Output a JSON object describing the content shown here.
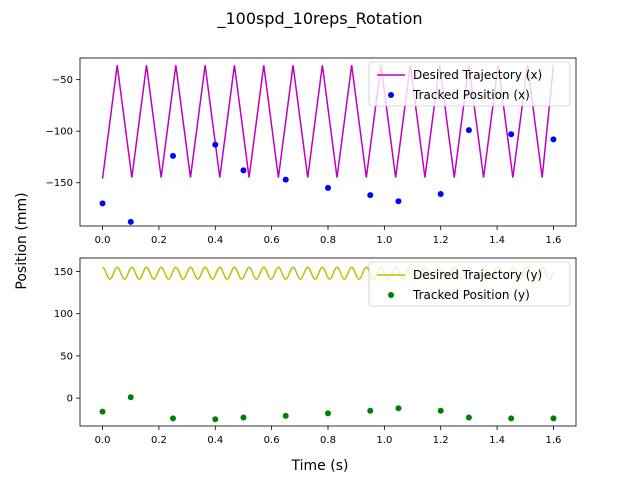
{
  "figure": {
    "title": "_100spd_10reps_Rotation",
    "shared_ylabel": "Position (mm)",
    "shared_xlabel": "Time (s)"
  },
  "chart_data": [
    {
      "type": "line",
      "xlim": [
        -0.08,
        1.68
      ],
      "ylim": [
        -192,
        -29
      ],
      "xticks": [
        0.0,
        0.2,
        0.4,
        0.6,
        0.8,
        1.0,
        1.2,
        1.4,
        1.6
      ],
      "xtick_labels": [
        "0.0",
        "0.2",
        "0.4",
        "0.6",
        "0.8",
        "1.0",
        "1.2",
        "1.4",
        "1.6"
      ],
      "yticks": [
        -150,
        -100,
        -50
      ],
      "ytick_labels": [
        "−150",
        "−100",
        "−50"
      ],
      "grid": false,
      "legend_position": "top-right",
      "series": [
        {
          "name": "Desired Trajectory (x)",
          "kind": "line",
          "color": "#bf00bf",
          "x": [
            0.0,
            0.052,
            0.104,
            0.156,
            0.208,
            0.26,
            0.312,
            0.364,
            0.416,
            0.468,
            0.52,
            0.572,
            0.624,
            0.676,
            0.728,
            0.78,
            0.832,
            0.884,
            0.936,
            0.988,
            1.04,
            1.092,
            1.144,
            1.196,
            1.248,
            1.3,
            1.352,
            1.404,
            1.456,
            1.508,
            1.56,
            1.6
          ],
          "y": [
            -146,
            -36,
            -145,
            -36,
            -145,
            -36,
            -145,
            -36,
            -145,
            -36,
            -145,
            -36,
            -145,
            -36,
            -145,
            -36,
            -145,
            -36,
            -145,
            -36,
            -145,
            -36,
            -145,
            -36,
            -145,
            -36,
            -145,
            -36,
            -145,
            -36,
            -145,
            -36
          ]
        },
        {
          "name": "Tracked Position (x)",
          "kind": "scatter",
          "color": "#0000ff",
          "x": [
            0.0,
            0.1,
            0.25,
            0.4,
            0.5,
            0.65,
            0.8,
            0.95,
            1.05,
            1.2,
            1.3,
            1.45,
            1.6
          ],
          "y": [
            -170,
            -188,
            -124,
            -113,
            -138,
            -147,
            -155,
            -162,
            -168,
            -161,
            -99,
            -103,
            -108
          ]
        }
      ]
    },
    {
      "type": "line",
      "xlim": [
        -0.08,
        1.68
      ],
      "ylim": [
        -33,
        166
      ],
      "xticks": [
        0.0,
        0.2,
        0.4,
        0.6,
        0.8,
        1.0,
        1.2,
        1.4,
        1.6
      ],
      "xtick_labels": [
        "0.0",
        "0.2",
        "0.4",
        "0.6",
        "0.8",
        "1.0",
        "1.2",
        "1.4",
        "1.6"
      ],
      "yticks": [
        0,
        50,
        100,
        150
      ],
      "ytick_labels": [
        "0",
        "50",
        "100",
        "150"
      ],
      "grid": false,
      "legend_position": "top-right",
      "series": [
        {
          "name": "Desired Trajectory (y)",
          "kind": "line",
          "color": "#bfbf00",
          "period": 0.052,
          "x": [
            0.0,
            1.6
          ],
          "y_min": 141,
          "y_max": 155,
          "y_start": 155
        },
        {
          "name": "Tracked Position (y)",
          "kind": "scatter",
          "color": "#008000",
          "x": [
            0.0,
            0.1,
            0.25,
            0.4,
            0.5,
            0.65,
            0.8,
            0.95,
            1.05,
            1.2,
            1.3,
            1.45,
            1.6
          ],
          "y": [
            -16,
            1,
            -24,
            -25,
            -23,
            -21,
            -18,
            -15,
            -12,
            -15,
            -23,
            -24,
            -24
          ]
        }
      ]
    }
  ]
}
